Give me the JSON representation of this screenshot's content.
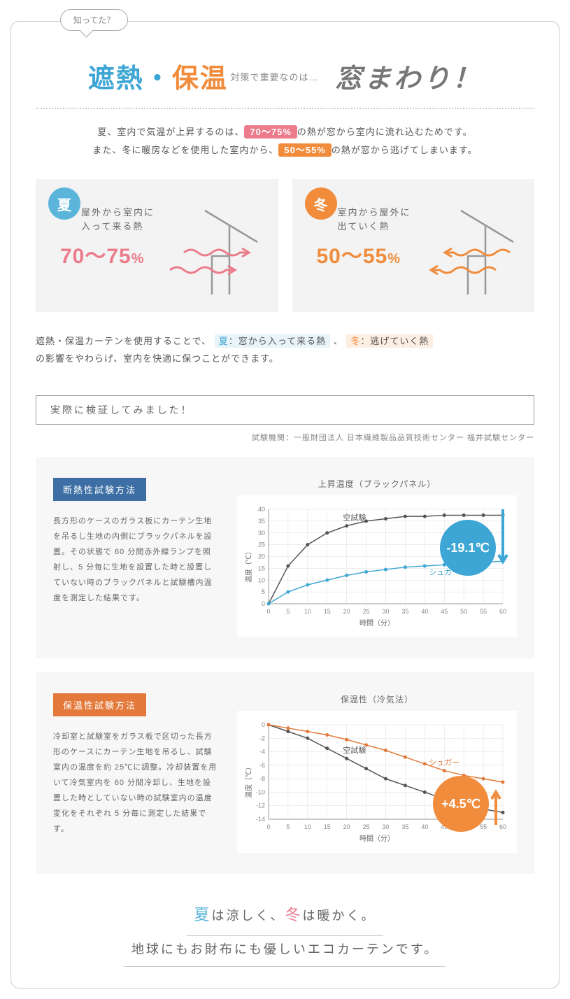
{
  "bubble": "知ってた？",
  "headline": {
    "blue": "遮熱",
    "dot": "・",
    "orange": "保温",
    "mid": "対策で重要なのは…",
    "end": "窓まわり！"
  },
  "intro": {
    "line1_a": "夏、室内で気温が上昇するのは、",
    "badge1": "70〜75%",
    "line1_b": "の熱が窓から室内に流れ込むためです。",
    "line2_a": "また、冬に暖房などを使用した室内から、",
    "badge2": "50〜55%",
    "line2_b": "の熱が窓から逃げてしまいます。"
  },
  "summer_panel": {
    "circle": "夏",
    "text": "屋外から室内に\n入って来る熱",
    "pct": "70〜75",
    "pct_unit": "%",
    "color": "#ec7b8b",
    "circle_color": "#5bb5db"
  },
  "winter_panel": {
    "circle": "冬",
    "text": "室内から屋外に\n出ていく熱",
    "pct": "50〜55",
    "pct_unit": "%",
    "color": "#f08c3c",
    "circle_color": "#f08c3c"
  },
  "explain": {
    "a": "遮熱・保温カーテンを使用することで、",
    "s_label": "夏",
    "s_text": "：窓から入って来る熱",
    "sep": "、",
    "w_label": "冬",
    "w_text": "：逃げていく熱",
    "b": "の影響をやわらげ、室内を快適に保つことができます。"
  },
  "section_title": "実際に検証してみました！",
  "test_org": "試験機関：一般財団法人 日本繊維製品品質技術センター 福井試験センター",
  "test1": {
    "label": "断熱性試験方法",
    "desc": "長方形のケースのガラス板にカーテン生地を吊るし生地の内側にブラックパネルを設置。その状態で 60 分間赤外線ランプを照射し、5 分毎に生地を設置した時と設置していない時のブラックパネルと試験槽内温度を測定した結果です。",
    "chart": {
      "title": "上昇温度（ブラックパネル）",
      "xlabel": "時間（分）",
      "ylabel": "温度（℃）",
      "x_ticks": [
        0,
        5,
        10,
        15,
        20,
        25,
        30,
        35,
        40,
        45,
        50,
        55,
        60
      ],
      "y_ticks": [
        0,
        5,
        10,
        15,
        20,
        25,
        30,
        35,
        40
      ],
      "series": [
        {
          "name": "空試験",
          "color": "#555",
          "values": [
            0,
            16,
            25,
            30,
            33,
            35,
            36,
            37,
            37,
            37.5,
            37.5,
            37.5,
            37.5
          ]
        },
        {
          "name": "シュガー",
          "color": "#3da6d4",
          "values": [
            0,
            5,
            8,
            10,
            12,
            13.5,
            14.5,
            15.5,
            16,
            16.5,
            17,
            17.5,
            18
          ]
        }
      ],
      "result_badge": "-19.1℃",
      "result_color": "#3da6d4"
    }
  },
  "test2": {
    "label": "保温性試験方法",
    "desc": "冷却室と試験室をガラス板で区切った長方形のケースにカーテン生地を吊るし、試験室内の温度を約 25℃に調整。冷却装置を用いて冷気室内を 60 分間冷却し、生地を設置した時としていない時の試験室内の温度変化をそれぞれ 5 分毎に測定した結果です。",
    "chart": {
      "title": "保温性（冷気法）",
      "xlabel": "時間（分）",
      "ylabel": "温度（℃）",
      "x_ticks": [
        0,
        5,
        10,
        15,
        20,
        25,
        30,
        35,
        40,
        45,
        50,
        55,
        60
      ],
      "y_ticks": [
        -14,
        -12,
        -10,
        -8,
        -6,
        -4,
        -2,
        0
      ],
      "series": [
        {
          "name": "空試験",
          "color": "#555",
          "values": [
            0,
            -1,
            -2,
            -3.5,
            -5,
            -6.5,
            -8,
            -9,
            -10,
            -11,
            -12,
            -12.5,
            -13
          ]
        },
        {
          "name": "シュガー",
          "color": "#e37a3c",
          "values": [
            0,
            -0.5,
            -1,
            -1.5,
            -2.2,
            -3,
            -3.8,
            -4.8,
            -5.8,
            -6.8,
            -7.5,
            -8,
            -8.5
          ]
        }
      ],
      "result_badge": "+4.5℃",
      "result_color": "#f08c3c"
    }
  },
  "footer": {
    "l1_a": "は涼しく、",
    "l1_b": "は暖かく。",
    "summer": "夏",
    "winter": "冬",
    "l2": "地球にもお財布にも優しいエコカーテンです。"
  }
}
